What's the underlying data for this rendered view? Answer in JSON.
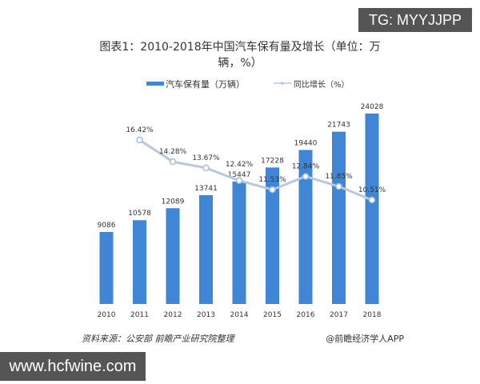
{
  "chart_data": {
    "type": "bar+line",
    "title": "图表1：2010-2018年中国汽车保有量及增长（单位：万辆，%）",
    "title_line1": "图表1：2010-2018年中国汽车保有量及增长（单位：万",
    "title_line2": "辆，%）",
    "categories": [
      "2010",
      "2011",
      "2012",
      "2013",
      "2014",
      "2015",
      "2016",
      "2017",
      "2018"
    ],
    "series": [
      {
        "name": "汽车保有量（万辆）",
        "type": "bar",
        "color": "#3f86d6",
        "values": [
          9086,
          10578,
          12089,
          13741,
          15447,
          17228,
          19440,
          21743,
          24028
        ]
      },
      {
        "name": "同比增长（%）",
        "type": "line",
        "color": "#b8c8de",
        "values": [
          null,
          16.42,
          14.28,
          13.67,
          12.42,
          11.53,
          12.84,
          11.85,
          10.51
        ]
      }
    ],
    "value_labels_line": [
      "",
      "16.42%",
      "14.28%",
      "13.67%",
      "12.42%",
      "11.53%",
      "12.84%",
      "11.85%",
      "10.51%"
    ],
    "legend": "top-center",
    "grid": false,
    "source": "资料来源：公安部 前瞻产业研究院整理",
    "credit": "@前瞻经济学人APP"
  },
  "watermarks": {
    "tg": "TG: MYYJJPP",
    "url": "www.hcfwine.com"
  }
}
